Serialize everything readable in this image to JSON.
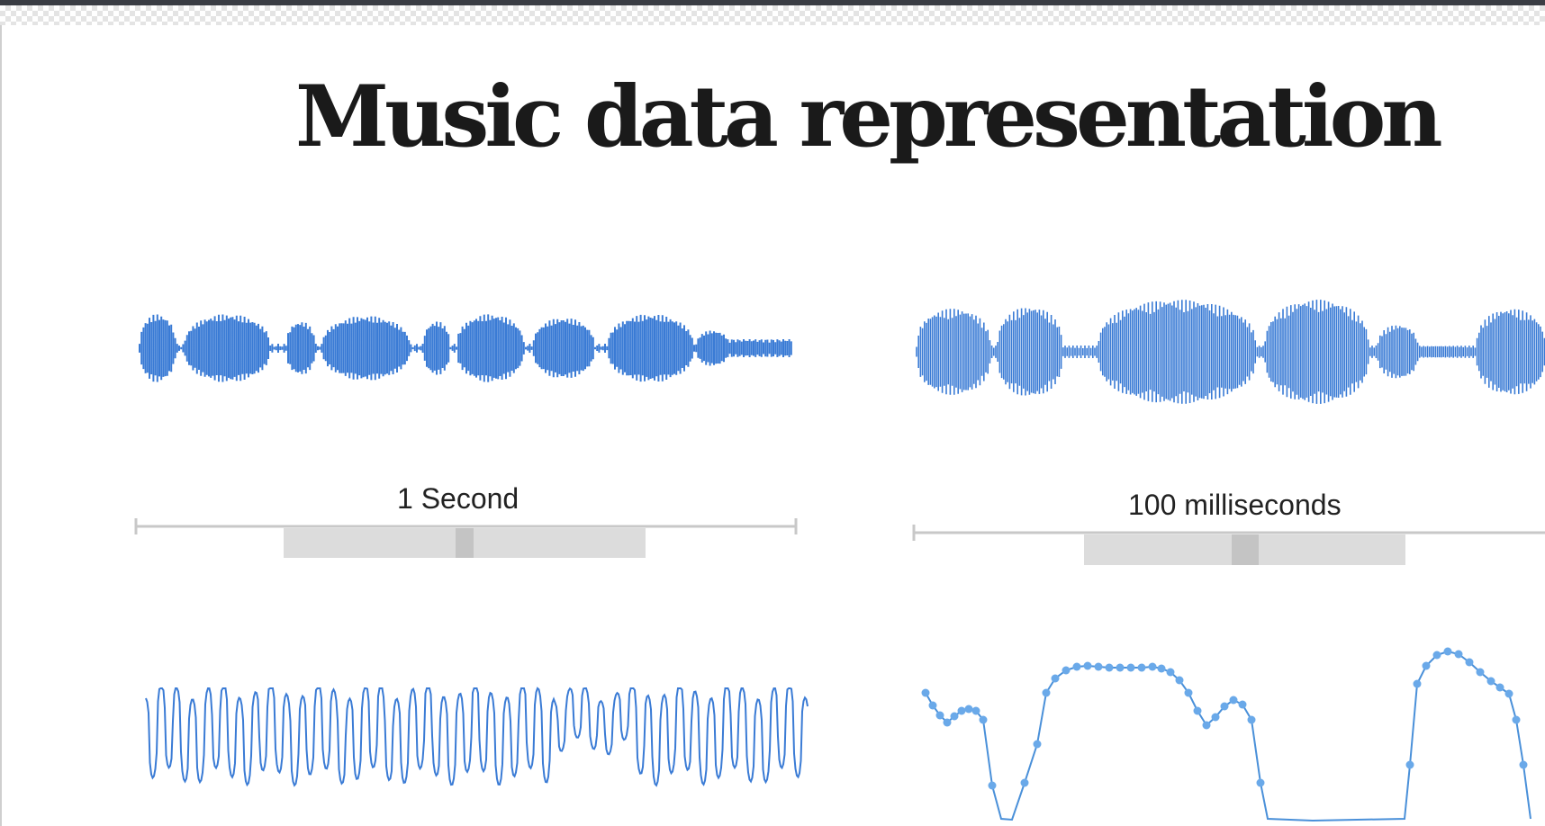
{
  "page": {
    "title": "Music data representation"
  },
  "panels": {
    "top_left": {
      "scale_label": "1 Second",
      "waveform_color": "#3a7bd5"
    },
    "top_right": {
      "scale_label": "100 milliseconds",
      "waveform_color": "#3a7bd5"
    },
    "bottom_left": {
      "line_color": "#3a7bd5"
    },
    "bottom_right": {
      "line_color": "#4a90d9",
      "marker_color": "#6aa9e9"
    }
  },
  "colors": {
    "title_text": "#1a1a1a",
    "scale_bar": "#c8c8c8",
    "window_highlight": "#dcdcdc",
    "window_center": "#c4c4c4"
  }
}
